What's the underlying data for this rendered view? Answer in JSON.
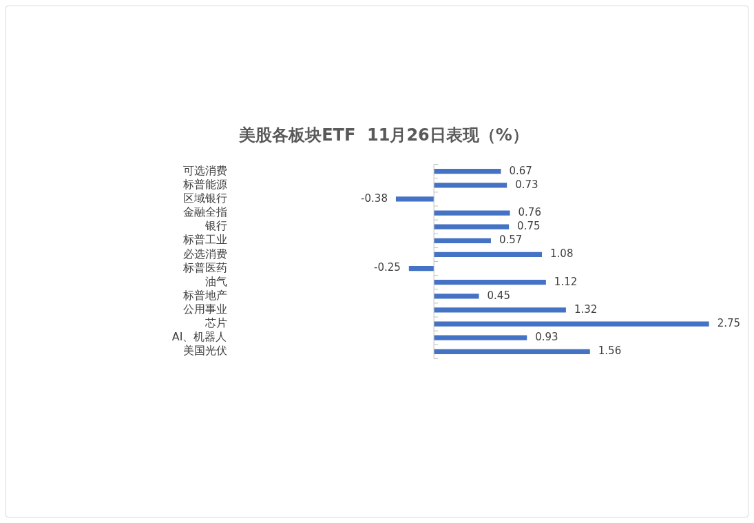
{
  "chart_data": {
    "type": "bar",
    "orientation": "horizontal",
    "title": "美股各板块ETF  11月26日表现（%）",
    "categories": [
      "可选消费",
      "标普能源",
      "区域银行",
      "金融全指",
      "银行",
      "标普工业",
      "必选消费",
      "标普医药",
      "油气",
      "标普地产",
      "公用事业",
      "芯片",
      "AI、机器人",
      "美国光伏"
    ],
    "values": [
      0.67,
      0.73,
      -0.38,
      0.76,
      0.75,
      0.57,
      1.08,
      -0.25,
      1.12,
      0.45,
      1.32,
      2.75,
      0.93,
      1.56
    ],
    "color": "#4472c4",
    "data_labels": true,
    "grid": false,
    "legend": false
  }
}
